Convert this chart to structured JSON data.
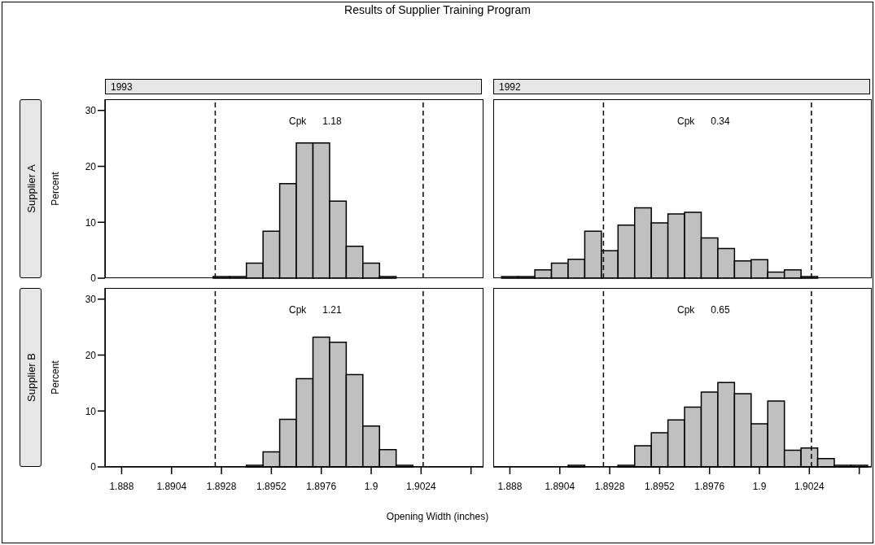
{
  "chart_data": [
    {
      "type": "histogram",
      "title": "Results of Supplier Training Program",
      "subtitle": "1993",
      "ylabel": "Percent",
      "annotations": [
        "Supplier A",
        "Cpk 1.18"
      ],
      "bins": [
        1.8924,
        1.8932,
        1.894,
        1.8948,
        1.8956,
        1.8964,
        1.8972,
        1.898,
        1.8988,
        1.8996,
        1.9004,
        1.9012
      ],
      "values": [
        0.3,
        0.3,
        2.7,
        8.4,
        16.9,
        24.2,
        24.2,
        13.8,
        5.7,
        2.7,
        0.3
      ],
      "color": "#c0c0c0",
      "xlim": [
        1.8872,
        1.9054
      ],
      "ylim": [
        0,
        32
      ],
      "yticks": [
        0,
        10,
        20,
        30
      ],
      "ref_lines": [
        {
          "axis": "x",
          "value": 1.8925,
          "line_style": "dashed"
        },
        {
          "axis": "x",
          "value": 1.9025,
          "line_style": "dashed"
        }
      ],
      "tick_labels": "y"
    },
    {
      "type": "histogram",
      "subtitle": "1992",
      "annotations": [
        "Cpk 0.34"
      ],
      "bins": [
        1.8876,
        1.8884,
        1.8892,
        1.89,
        1.8908,
        1.8916,
        1.8924,
        1.8932,
        1.894,
        1.8948,
        1.8956,
        1.8964,
        1.8972,
        1.898,
        1.8988,
        1.8996,
        1.9004,
        1.9012,
        1.902,
        1.9028
      ],
      "values": [
        0.3,
        0.3,
        1.5,
        2.7,
        3.4,
        8.4,
        4.9,
        9.5,
        12.6,
        9.9,
        11.5,
        11.8,
        7.2,
        5.3,
        3.1,
        3.3,
        1.1,
        1.5,
        0.3
      ],
      "color": "#c0c0c0",
      "xlim": [
        1.8872,
        1.9054
      ],
      "ylim": [
        0,
        32
      ],
      "ref_lines": [
        {
          "axis": "x",
          "value": 1.8925,
          "line_style": "dashed"
        },
        {
          "axis": "x",
          "value": 1.9025,
          "line_style": "dashed"
        }
      ],
      "tick_labels": false
    },
    {
      "type": "histogram",
      "xlabel": "Opening Width (inches)",
      "ylabel": "Percent",
      "annotations": [
        "Supplier B",
        "Cpk 1.21"
      ],
      "bins": [
        1.894,
        1.8948,
        1.8956,
        1.8964,
        1.8972,
        1.898,
        1.8988,
        1.8996,
        1.9004,
        1.9012,
        1.902
      ],
      "values": [
        0.3,
        2.7,
        8.5,
        15.8,
        23.2,
        22.3,
        16.5,
        7.3,
        3.1,
        0.3
      ],
      "color": "#c0c0c0",
      "xlim": [
        1.8872,
        1.9054
      ],
      "xticks": [
        1.888,
        1.8904,
        1.8928,
        1.8952,
        1.8976,
        1.9,
        1.9024,
        {
          "value": 1.9048,
          "label": null
        }
      ],
      "ylim": [
        0,
        32
      ],
      "yticks": [
        0,
        10,
        20,
        30
      ],
      "ref_lines": [
        {
          "axis": "x",
          "value": 1.8925,
          "line_style": "dashed"
        },
        {
          "axis": "x",
          "value": 1.9025,
          "line_style": "dashed"
        }
      ]
    },
    {
      "type": "histogram",
      "annotations": [
        "Cpk 0.65"
      ],
      "bins": [
        1.8908,
        1.8916,
        1.8924,
        1.8932,
        1.894,
        1.8948,
        1.8956,
        1.8964,
        1.8972,
        1.898,
        1.8988,
        1.8996,
        1.9004,
        1.9012,
        1.902,
        1.9028,
        1.9036,
        1.9044,
        1.9052
      ],
      "values": [
        0.3,
        0,
        0,
        0.3,
        3.8,
        6.1,
        8.4,
        10.7,
        13.4,
        15.1,
        13.1,
        7.7,
        11.8,
        3.0,
        3.4,
        1.5,
        0.3,
        0.3
      ],
      "color": "#c0c0c0",
      "xlim": [
        1.8872,
        1.9054
      ],
      "xticks": [
        1.888,
        1.8904,
        1.8928,
        1.8952,
        1.8976,
        1.9,
        1.9024,
        {
          "value": 1.9048,
          "label": null
        }
      ],
      "ylim": [
        0,
        32
      ],
      "yticks": [
        0,
        10,
        20,
        30
      ],
      "ref_lines": [
        {
          "axis": "x",
          "value": 1.8925,
          "line_style": "dashed"
        },
        {
          "axis": "x",
          "value": 1.9025,
          "line_style": "dashed"
        }
      ],
      "tick_labels": "x"
    }
  ]
}
